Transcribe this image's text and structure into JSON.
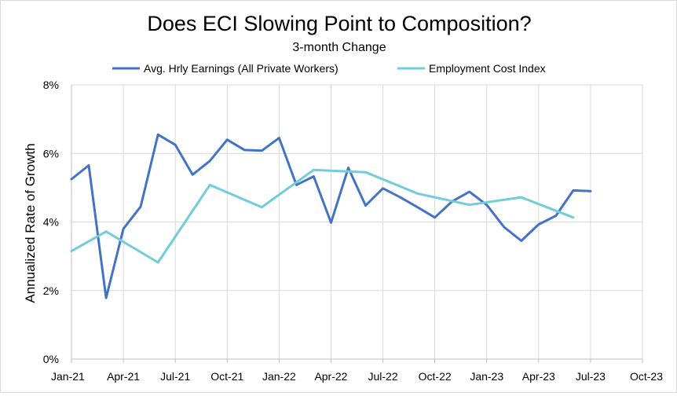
{
  "chart_data": {
    "type": "line",
    "title": "Does ECI Slowing Point to Composition?",
    "subtitle": "3-month Change",
    "xlabel": "",
    "ylabel": "Annualized Rate of Growth",
    "ylim": [
      0,
      8
    ],
    "yticks": [
      0,
      2,
      4,
      6,
      8
    ],
    "ytick_labels": [
      "0%",
      "2%",
      "4%",
      "6%",
      "8%"
    ],
    "xlim": [
      0,
      33
    ],
    "xticks": [
      0,
      3,
      6,
      9,
      12,
      15,
      18,
      21,
      24,
      27,
      30,
      33
    ],
    "xtick_labels": [
      "Jan-21",
      "Apr-21",
      "Jul-21",
      "Oct-21",
      "Jan-22",
      "Apr-22",
      "Jul-22",
      "Oct-22",
      "Jan-23",
      "Apr-23",
      "Jul-23",
      "Oct-23"
    ],
    "grid": true,
    "legend": "top",
    "series": [
      {
        "name": "Avg. Hrly Earnings (All Private Workers)",
        "color": "#4472c4",
        "x": [
          0,
          1,
          2,
          3,
          4,
          5,
          6,
          7,
          8,
          9,
          10,
          11,
          12,
          13,
          14,
          15,
          16,
          17,
          18,
          19,
          20,
          21,
          22,
          23,
          24,
          25,
          26,
          27,
          28,
          29,
          30
        ],
        "values": [
          5.25,
          5.65,
          1.78,
          3.8,
          4.45,
          6.55,
          6.25,
          5.38,
          5.78,
          6.4,
          6.1,
          6.08,
          6.45,
          5.08,
          5.33,
          3.98,
          5.58,
          4.48,
          4.98,
          4.72,
          4.43,
          4.13,
          4.6,
          4.88,
          4.5,
          3.85,
          3.45,
          3.93,
          4.18,
          4.92,
          4.9
        ]
      },
      {
        "name": "Employment Cost Index",
        "color": "#70cdd9",
        "x": [
          0,
          2,
          5,
          8,
          11,
          14,
          17,
          20,
          23,
          26,
          29
        ],
        "values": [
          3.15,
          3.72,
          2.82,
          5.08,
          4.43,
          5.52,
          5.45,
          4.83,
          4.5,
          4.72,
          4.13
        ]
      }
    ]
  }
}
